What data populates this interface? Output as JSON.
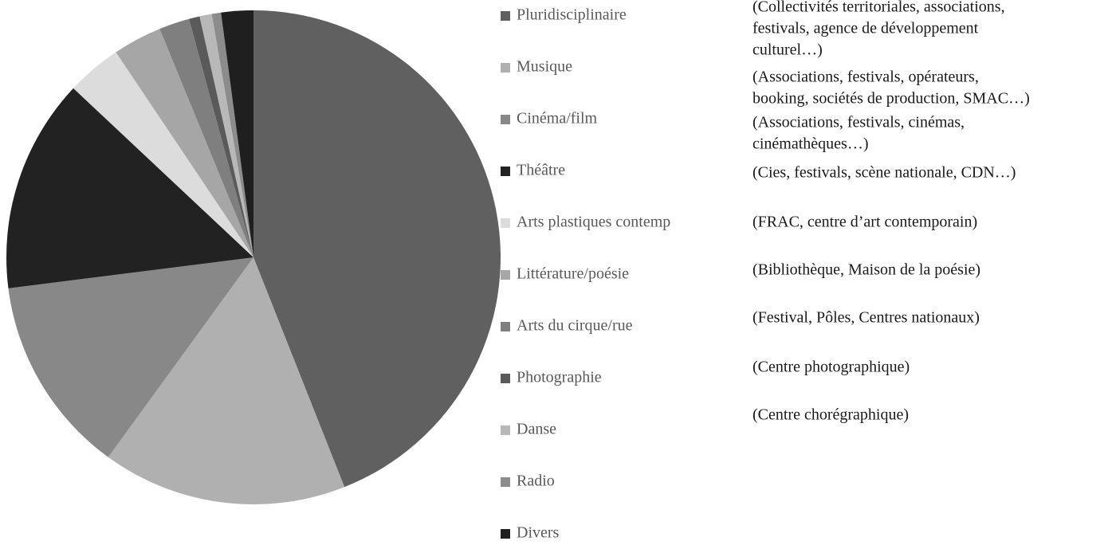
{
  "chart_data": {
    "type": "pie",
    "categories": [
      "Pluridisciplinaire",
      "Musique",
      "Cinéma/film",
      "Théâtre",
      "Arts plastiques contemp",
      "Littérature/poésie",
      "Arts du cirque/rue",
      "Photographie",
      "Danse",
      "Radio",
      "Divers"
    ],
    "values": [
      44,
      16,
      13,
      14,
      3.6,
      3.2,
      2,
      0.7,
      0.8,
      0.6,
      2.1
    ],
    "colors": [
      "#606060",
      "#b0b0b0",
      "#888888",
      "#222222",
      "#dcdcdc",
      "#a6a6a6",
      "#7f7f7f",
      "#5a5a5a",
      "#b8b8b8",
      "#8c8c8c",
      "#1f1f1f"
    ],
    "legend": "right",
    "annotations": [
      [
        "(Collectivités territoriales, associations,",
        "festivals, agence de développement",
        "culturel…)"
      ],
      [
        "(Associations, festivals, opérateurs,",
        "booking, sociétés de production, SMAC…)"
      ],
      [
        "(Associations, festivals, cinémas,",
        "cinémathèques…)"
      ],
      [
        "(Cies, festivals, scène nationale, CDN…)"
      ],
      [
        "(FRAC, centre d’art contemporain)"
      ],
      [
        "(Bibliothèque, Maison de la poésie)"
      ],
      [
        "(Festival, Pôles, Centres nationaux)"
      ],
      [
        "(Centre photographique)"
      ],
      [
        "(Centre chorégraphique)"
      ]
    ]
  }
}
